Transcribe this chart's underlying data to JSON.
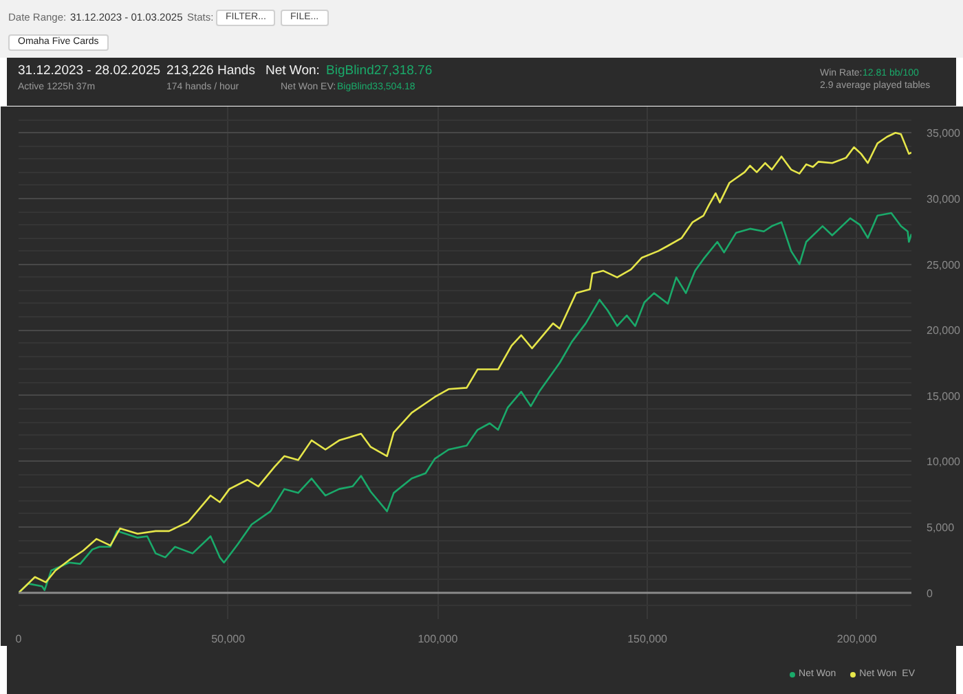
{
  "chart_data": {
    "type": "line",
    "title": "31.12.2023 - 28.02.2025",
    "annotations": [
      "Date Range:",
      "31.12.2023 - 01.03.2025",
      "Stats:",
      "FILTER...",
      "FILE...",
      "Omaha Five Cards",
      "Active 1225h 37m",
      "213,226 Hands",
      "174 hands / hour",
      "Net Won:",
      "BigBlind27,318.76",
      "Net Won  EV:",
      "BigBlind33,504.18",
      "Win Rate:",
      "12.81 bb/100",
      "2.9 average played tables"
    ],
    "xlim": [
      0,
      213000
    ],
    "ylim": [
      -2000,
      37000
    ],
    "xticks": [
      0,
      {
        "value": 50000,
        "label": "50,000"
      },
      {
        "value": 100000,
        "label": "100,000"
      },
      {
        "value": 150000,
        "label": "150,000"
      },
      {
        "value": 200000,
        "label": "200,000"
      }
    ],
    "yticks": [
      0,
      {
        "value": 5000,
        "label": "5,000"
      },
      {
        "value": 10000,
        "label": "10,000"
      },
      {
        "value": 15000,
        "label": "15,000"
      },
      {
        "value": 20000,
        "label": "20,000"
      },
      {
        "value": 25000,
        "label": "25,000"
      },
      {
        "value": 30000,
        "label": "30,000"
      },
      {
        "value": 35000,
        "label": "35,000"
      }
    ],
    "grid": true,
    "legend": "bottom right",
    "ref_lines": [
      {
        "axis": "y",
        "value": 0,
        "color": "#8a8a8a"
      }
    ],
    "series": [
      {
        "name": "Net Won",
        "color": "#1aaa6a",
        "x": [
          0,
          2300,
          5600,
          6200,
          7800,
          12100,
          14700,
          17600,
          19300,
          21900,
          23500,
          28400,
          30700,
          32700,
          35000,
          37300,
          41500,
          45800,
          48000,
          49000,
          52300,
          55600,
          60100,
          63400,
          66700,
          69900,
          71900,
          73200,
          76500,
          79700,
          81700,
          84000,
          87900,
          89500,
          93800,
          97100,
          99300,
          102600,
          106900,
          109500,
          112400,
          114400,
          116700,
          119900,
          122200,
          124200,
          129100,
          132000,
          135300,
          138600,
          140500,
          142800,
          145100,
          147100,
          149300,
          151600,
          154900,
          156900,
          159200,
          161400,
          163400,
          166700,
          168300,
          171200,
          174500,
          177800,
          179700,
          182000,
          184300,
          186300,
          187900,
          191800,
          194100,
          198400,
          200700,
          202600,
          204900,
          208200,
          210500,
          212100,
          212400,
          213000
        ],
        "values": [
          0,
          700,
          500,
          200,
          1700,
          2300,
          2200,
          3300,
          3500,
          3500,
          4700,
          4200,
          4300,
          3000,
          2700,
          3500,
          3000,
          4300,
          2700,
          2300,
          3700,
          5200,
          6200,
          7900,
          7600,
          8700,
          7900,
          7400,
          7900,
          8100,
          8900,
          7700,
          6200,
          7600,
          8700,
          9100,
          10200,
          10900,
          11200,
          12400,
          12900,
          12400,
          14100,
          15300,
          14200,
          15300,
          17500,
          19100,
          20500,
          22300,
          21500,
          20300,
          21100,
          20300,
          22100,
          22800,
          22000,
          24000,
          22800,
          24500,
          25400,
          26700,
          25900,
          27400,
          27700,
          27500,
          27900,
          28200,
          26000,
          25000,
          26700,
          27900,
          27200,
          28500,
          28000,
          27000,
          28700,
          28900,
          27900,
          27500,
          26700,
          27300
        ]
      },
      {
        "name": "Net Won  EV",
        "color": "#e6e64a",
        "x": [
          0,
          3900,
          6500,
          8800,
          12100,
          15400,
          18600,
          21900,
          24200,
          28400,
          32700,
          35900,
          40500,
          45800,
          48000,
          50300,
          54600,
          57200,
          61100,
          63400,
          66700,
          69900,
          73200,
          76500,
          81700,
          84000,
          87900,
          89500,
          93800,
          99300,
          102600,
          106900,
          109500,
          114400,
          117600,
          119900,
          122500,
          127500,
          129100,
          133000,
          136300,
          136900,
          139500,
          142800,
          146100,
          148700,
          152600,
          154900,
          158200,
          160800,
          163400,
          164700,
          166300,
          167300,
          169600,
          173200,
          174500,
          176100,
          178100,
          179700,
          182000,
          184300,
          186300,
          187900,
          189500,
          190800,
          194100,
          197400,
          199300,
          201000,
          202600,
          204900,
          207200,
          209200,
          210500,
          212400,
          213000
        ],
        "values": [
          0,
          1200,
          800,
          1700,
          2500,
          3200,
          4100,
          3600,
          4900,
          4500,
          4700,
          4700,
          5400,
          7400,
          6900,
          7900,
          8600,
          8100,
          9600,
          10400,
          10100,
          11600,
          10900,
          11600,
          12100,
          11100,
          10400,
          12200,
          13700,
          14900,
          15500,
          15600,
          17000,
          17000,
          18800,
          19600,
          18600,
          20500,
          20100,
          22800,
          23100,
          24300,
          24500,
          24000,
          24600,
          25500,
          26000,
          26400,
          27000,
          28200,
          28700,
          29500,
          30400,
          29700,
          31200,
          32000,
          32500,
          32000,
          32700,
          32200,
          33200,
          32200,
          31900,
          32600,
          32400,
          32800,
          32700,
          33100,
          33900,
          33400,
          32700,
          34200,
          34700,
          35000,
          34900,
          33400,
          33500
        ]
      }
    ]
  }
}
